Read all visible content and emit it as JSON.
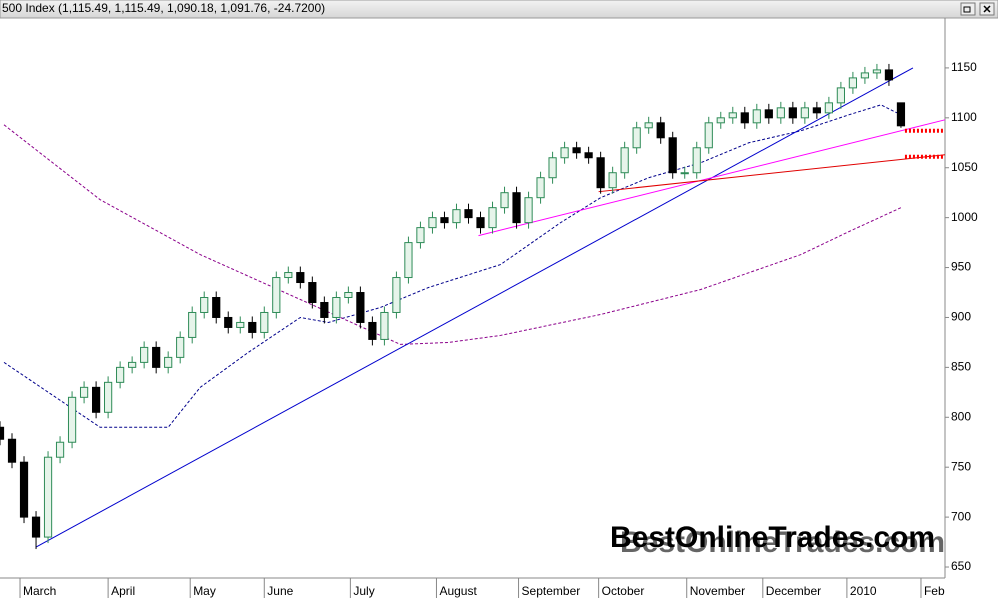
{
  "chart_data": {
    "type": "candlestick",
    "title": "500 Index (1,115.49, 1,115.49, 1,090.18, 1,091.76, -24.7200)",
    "watermark": "BestOnlineTrades.com",
    "up_color": "#2e8b57",
    "down_color": "#000000",
    "x": [
      0,
      3,
      6,
      9,
      12,
      15,
      18,
      21,
      24,
      27,
      30,
      33,
      36,
      39,
      42,
      45,
      48,
      51,
      54,
      57,
      60,
      63,
      66,
      69,
      72,
      75,
      78,
      81,
      84,
      87,
      90,
      93,
      96,
      99,
      102,
      105,
      108,
      111,
      114,
      117,
      120,
      123,
      126,
      129,
      132,
      135,
      138,
      141,
      144,
      147,
      150,
      153,
      156,
      159,
      162,
      165,
      168,
      171,
      174,
      177,
      180,
      183,
      186,
      189,
      192,
      195,
      198,
      201,
      204,
      207,
      210,
      213,
      216,
      219,
      222,
      225
    ],
    "open": [
      790,
      778,
      755,
      700,
      680,
      760,
      775,
      820,
      830,
      805,
      835,
      850,
      855,
      870,
      850,
      860,
      880,
      905,
      920,
      900,
      890,
      895,
      885,
      905,
      940,
      945,
      935,
      915,
      900,
      920,
      925,
      895,
      878,
      905,
      940,
      975,
      990,
      1000,
      995,
      1008,
      1000,
      990,
      1010,
      1025,
      995,
      1020,
      1040,
      1060,
      1070,
      1065,
      1060,
      1030,
      1045,
      1070,
      1090,
      1095,
      1080,
      1045,
      1045,
      1070,
      1095,
      1100,
      1105,
      1095,
      1108,
      1100,
      1110,
      1100,
      1110,
      1105,
      1115,
      1130,
      1140,
      1145,
      1148,
      1115
    ],
    "high": [
      796,
      784,
      761,
      706,
      766,
      781,
      826,
      836,
      836,
      841,
      856,
      861,
      876,
      876,
      866,
      886,
      911,
      926,
      926,
      906,
      901,
      901,
      911,
      946,
      951,
      951,
      941,
      921,
      926,
      931,
      931,
      901,
      911,
      946,
      981,
      996,
      1006,
      1006,
      1014,
      1014,
      1006,
      1016,
      1031,
      1031,
      1026,
      1046,
      1066,
      1076,
      1076,
      1071,
      1066,
      1051,
      1076,
      1096,
      1101,
      1101,
      1086,
      1051,
      1076,
      1101,
      1106,
      1111,
      1111,
      1114,
      1114,
      1116,
      1116,
      1116,
      1116,
      1121,
      1136,
      1146,
      1151,
      1154,
      1154,
      1115
    ],
    "low": [
      772,
      749,
      694,
      668,
      674,
      754,
      769,
      814,
      799,
      799,
      829,
      844,
      849,
      844,
      844,
      854,
      874,
      899,
      894,
      884,
      884,
      879,
      879,
      899,
      934,
      929,
      909,
      894,
      894,
      914,
      889,
      872,
      872,
      899,
      934,
      969,
      984,
      989,
      989,
      994,
      984,
      984,
      1004,
      989,
      989,
      1014,
      1034,
      1054,
      1059,
      1054,
      1024,
      1024,
      1039,
      1064,
      1084,
      1074,
      1039,
      1039,
      1039,
      1064,
      1089,
      1094,
      1089,
      1089,
      1094,
      1094,
      1094,
      1094,
      1099,
      1099,
      1109,
      1124,
      1134,
      1139,
      1132,
      1090
    ],
    "close": [
      778,
      755,
      700,
      680,
      760,
      775,
      820,
      830,
      805,
      835,
      850,
      855,
      870,
      850,
      860,
      880,
      905,
      920,
      900,
      890,
      895,
      885,
      905,
      940,
      945,
      935,
      915,
      900,
      920,
      925,
      895,
      878,
      905,
      940,
      975,
      990,
      1000,
      995,
      1008,
      1000,
      990,
      1010,
      1025,
      995,
      1020,
      1040,
      1060,
      1070,
      1065,
      1060,
      1030,
      1045,
      1070,
      1090,
      1095,
      1080,
      1045,
      1045,
      1070,
      1095,
      1100,
      1105,
      1095,
      1108,
      1100,
      1110,
      1100,
      1110,
      1105,
      1115,
      1130,
      1140,
      1145,
      1148,
      1138,
      1092
    ],
    "lines": [
      {
        "color": "#00008b",
        "style": "dashed",
        "x": [
          1,
          25,
          42,
          50,
          62,
          75,
          82,
          95,
          107,
          125,
          140,
          150,
          162,
          175,
          187,
          200,
          212,
          220,
          224
        ],
        "values": [
          855,
          790,
          790,
          830,
          865,
          900,
          895,
          910,
          930,
          953,
          995,
          1020,
          1040,
          1055,
          1075,
          1087,
          1103,
          1113,
          1105
        ]
      },
      {
        "color": "#8b008b",
        "style": "dashed",
        "x": [
          1,
          25,
          50,
          75,
          100,
          112,
          125,
          150,
          175,
          200,
          212,
          225
        ],
        "values": [
          1093,
          1018,
          963,
          918,
          873,
          875,
          882,
          903,
          928,
          963,
          986,
          1010
        ]
      },
      {
        "color": "#0000cd",
        "style": "solid",
        "x": [
          9,
          228
        ],
        "values": [
          670,
          1150
        ]
      },
      {
        "color": "#ff00ff",
        "style": "solid",
        "x": [
          119.5,
          236
        ],
        "values": [
          982,
          1098
        ]
      },
      {
        "color": "#e00000",
        "style": "solid",
        "x": [
          149.5,
          236
        ],
        "values": [
          1026,
          1063
        ]
      },
      {
        "color": "#ff0000",
        "style": "dotted",
        "x": [
          226,
          236
        ],
        "values": [
          1087,
          1087
        ]
      },
      {
        "color": "#ff0000",
        "style": "dotted",
        "x": [
          226,
          236
        ],
        "values": [
          1061,
          1061
        ]
      }
    ],
    "xlim": [
      0,
      236
    ],
    "ylim": [
      639,
      1200
    ],
    "yticks": [
      650,
      700,
      750,
      800,
      850,
      900,
      950,
      1000,
      1050,
      1100,
      1150
    ],
    "xticks": [
      {
        "value": 5,
        "label": "March"
      },
      {
        "value": 27,
        "label": "April"
      },
      {
        "value": 47.5,
        "label": "May"
      },
      {
        "value": 66,
        "label": "June"
      },
      {
        "value": 87.5,
        "label": "July"
      },
      {
        "value": 109,
        "label": "August"
      },
      {
        "value": 129.5,
        "label": "September"
      },
      {
        "value": 149.5,
        "label": "October"
      },
      {
        "value": 171.5,
        "label": "November"
      },
      {
        "value": 190.5,
        "label": "December"
      },
      {
        "value": 211.5,
        "label": "2010"
      },
      {
        "value": 230,
        "label": "Feb"
      }
    ]
  }
}
